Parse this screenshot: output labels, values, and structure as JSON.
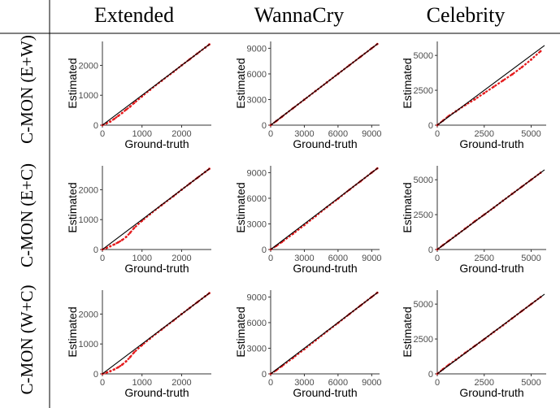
{
  "columns": [
    "Extended",
    "WannaCry",
    "Celebrity"
  ],
  "rows": [
    "C-MON (E+W)",
    "C-MON (E+C)",
    "C-MON (W+C)"
  ],
  "colors": {
    "points": "#e41a1c",
    "identity_line": "#000000",
    "axis": "#333333"
  },
  "chart_data": [
    {
      "type": "scatter",
      "row": "C-MON (E+W)",
      "column": "Extended",
      "xlabel": "Ground-truth",
      "ylabel": "Estimated",
      "xlim": [
        0,
        2750
      ],
      "ylim": [
        0,
        2800
      ],
      "xticks": [
        0,
        1000,
        2000
      ],
      "yticks": [
        0,
        1000,
        2000
      ],
      "identity_line": true,
      "x": [
        0,
        100,
        200,
        300,
        400,
        500,
        600,
        700,
        800,
        1000,
        1200,
        1500,
        1800,
        2000,
        2200,
        2400,
        2600,
        2700
      ],
      "y": [
        0,
        60,
        120,
        210,
        310,
        410,
        520,
        620,
        740,
        960,
        1180,
        1490,
        1790,
        2000,
        2200,
        2400,
        2600,
        2700
      ]
    },
    {
      "type": "scatter",
      "row": "C-MON (E+W)",
      "column": "WannaCry",
      "xlabel": "Ground-truth",
      "ylabel": "Estimated",
      "xlim": [
        0,
        9700
      ],
      "ylim": [
        0,
        9800
      ],
      "xticks": [
        0,
        3000,
        6000,
        9000
      ],
      "yticks": [
        0,
        3000,
        6000,
        9000
      ],
      "identity_line": true,
      "x": [
        0,
        500,
        1000,
        2000,
        3000,
        4000,
        5000,
        6000,
        7000,
        8000,
        9000,
        9500
      ],
      "y": [
        0,
        480,
        980,
        1990,
        2990,
        4000,
        5000,
        6000,
        7000,
        8000,
        9000,
        9500
      ]
    },
    {
      "type": "scatter",
      "row": "C-MON (E+W)",
      "column": "Celebrity",
      "xlabel": "Ground-truth",
      "ylabel": "Estimated",
      "xlim": [
        0,
        5800
      ],
      "ylim": [
        0,
        6000
      ],
      "xticks": [
        0,
        2500,
        5000
      ],
      "yticks": [
        0,
        2500,
        5000
      ],
      "identity_line": true,
      "x": [
        0,
        300,
        600,
        1000,
        1500,
        2000,
        2500,
        3000,
        3500,
        4000,
        4500,
        5000,
        5500
      ],
      "y": [
        0,
        320,
        650,
        1000,
        1450,
        1850,
        2300,
        2750,
        3200,
        3650,
        4150,
        4700,
        5300
      ]
    },
    {
      "type": "scatter",
      "row": "C-MON (E+C)",
      "column": "Extended",
      "xlabel": "Ground-truth",
      "ylabel": "Estimated",
      "xlim": [
        0,
        2750
      ],
      "ylim": [
        0,
        2800
      ],
      "xticks": [
        0,
        1000,
        2000
      ],
      "yticks": [
        0,
        1000,
        2000
      ],
      "identity_line": true,
      "x": [
        0,
        100,
        200,
        300,
        400,
        500,
        600,
        700,
        800,
        1000,
        1200,
        1500,
        1800,
        2000,
        2200,
        2400,
        2600,
        2700
      ],
      "y": [
        0,
        50,
        110,
        170,
        240,
        320,
        420,
        560,
        720,
        960,
        1180,
        1490,
        1790,
        2000,
        2200,
        2400,
        2600,
        2700
      ]
    },
    {
      "type": "scatter",
      "row": "C-MON (E+C)",
      "column": "WannaCry",
      "xlabel": "Ground-truth",
      "ylabel": "Estimated",
      "xlim": [
        0,
        9700
      ],
      "ylim": [
        0,
        9800
      ],
      "xticks": [
        0,
        3000,
        6000,
        9000
      ],
      "yticks": [
        0,
        3000,
        6000,
        9000
      ],
      "identity_line": true,
      "x": [
        0,
        500,
        1000,
        2000,
        3000,
        4000,
        5000,
        6000,
        7000,
        8000,
        9000,
        9500
      ],
      "y": [
        0,
        420,
        880,
        1850,
        2850,
        3900,
        4950,
        5950,
        6980,
        7980,
        9000,
        9500
      ]
    },
    {
      "type": "scatter",
      "row": "C-MON (E+C)",
      "column": "Celebrity",
      "xlabel": "Ground-truth",
      "ylabel": "Estimated",
      "xlim": [
        0,
        5800
      ],
      "ylim": [
        0,
        6000
      ],
      "xticks": [
        0,
        2500,
        5000
      ],
      "yticks": [
        0,
        2500,
        5000
      ],
      "identity_line": true,
      "x": [
        0,
        300,
        600,
        1000,
        1500,
        2000,
        2500,
        3000,
        3500,
        4000,
        4500,
        5000,
        5500
      ],
      "y": [
        0,
        310,
        610,
        1010,
        1510,
        2020,
        2500,
        2990,
        3500,
        4000,
        4500,
        5000,
        5500
      ]
    },
    {
      "type": "scatter",
      "row": "C-MON (W+C)",
      "column": "Extended",
      "xlabel": "Ground-truth",
      "ylabel": "Estimated",
      "xlim": [
        0,
        2750
      ],
      "ylim": [
        0,
        2800
      ],
      "xticks": [
        0,
        1000,
        2000
      ],
      "yticks": [
        0,
        1000,
        2000
      ],
      "identity_line": true,
      "x": [
        0,
        100,
        200,
        300,
        400,
        500,
        600,
        700,
        800,
        1000,
        1200,
        1500,
        1800,
        2000,
        2200,
        2400,
        2600,
        2700
      ],
      "y": [
        0,
        40,
        90,
        150,
        220,
        310,
        420,
        560,
        720,
        960,
        1180,
        1490,
        1790,
        2000,
        2200,
        2400,
        2600,
        2700
      ]
    },
    {
      "type": "scatter",
      "row": "C-MON (W+C)",
      "column": "WannaCry",
      "xlabel": "Ground-truth",
      "ylabel": "Estimated",
      "xlim": [
        0,
        9700
      ],
      "ylim": [
        0,
        9800
      ],
      "xticks": [
        0,
        3000,
        6000,
        9000
      ],
      "yticks": [
        0,
        3000,
        6000,
        9000
      ],
      "identity_line": true,
      "x": [
        0,
        500,
        1000,
        2000,
        3000,
        4000,
        5000,
        6000,
        7000,
        8000,
        9000,
        9500
      ],
      "y": [
        0,
        430,
        900,
        1880,
        2880,
        3920,
        4960,
        5960,
        6980,
        7990,
        9000,
        9500
      ]
    },
    {
      "type": "scatter",
      "row": "C-MON (W+C)",
      "column": "Celebrity",
      "xlabel": "Ground-truth",
      "ylabel": "Estimated",
      "xlim": [
        0,
        5800
      ],
      "ylim": [
        0,
        6000
      ],
      "xticks": [
        0,
        2500,
        5000
      ],
      "yticks": [
        0,
        2500,
        5000
      ],
      "identity_line": true,
      "x": [
        0,
        300,
        600,
        1000,
        1500,
        2000,
        2500,
        3000,
        3500,
        4000,
        4500,
        5000,
        5500
      ],
      "y": [
        0,
        330,
        640,
        1020,
        1520,
        2000,
        2480,
        2990,
        3480,
        3990,
        4500,
        5000,
        5500
      ]
    }
  ]
}
